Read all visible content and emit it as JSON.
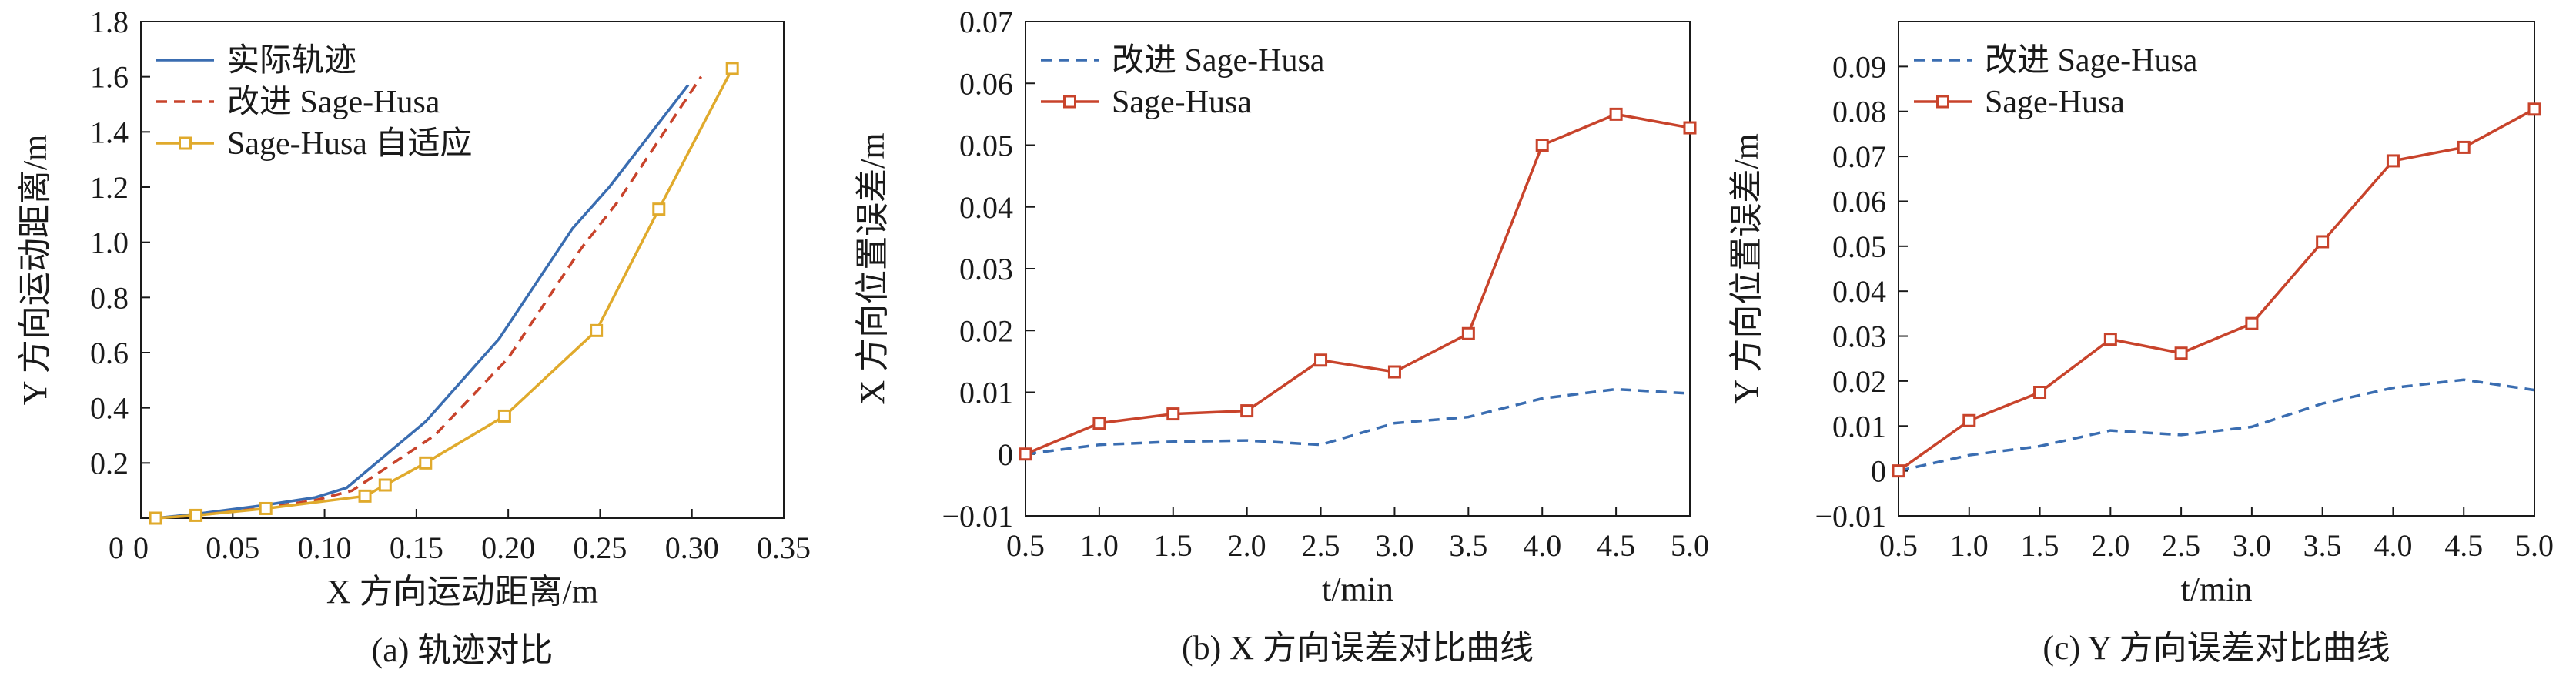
{
  "chart_data": [
    {
      "type": "line",
      "caption": "(a) 轨迹对比",
      "xlabel": "X 方向运动距离/m",
      "ylabel": "Y 方向运动距离/m",
      "xlim": [
        0,
        0.35
      ],
      "ylim": [
        0,
        1.8
      ],
      "xticks": [
        "0",
        "0.05",
        "0.10",
        "0.15",
        "0.20",
        "0.25",
        "0.30",
        "0.35"
      ],
      "yticks": [
        "0.2",
        "0.4",
        "0.6",
        "0.8",
        "1.0",
        "1.2",
        "1.4",
        "1.6",
        "1.8"
      ],
      "legend_position": "top-left",
      "series": [
        {
          "name": "实际轨迹",
          "color": "#3a6db1",
          "style": "solid",
          "marker": "none",
          "x": [
            0.008,
            0.03,
            0.065,
            0.095,
            0.112,
            0.155,
            0.195,
            0.235,
            0.255,
            0.298
          ],
          "y": [
            0.0,
            0.015,
            0.045,
            0.075,
            0.11,
            0.35,
            0.65,
            1.05,
            1.2,
            1.57
          ]
        },
        {
          "name": "改进 Sage-Husa",
          "color": "#c8432b",
          "style": "dashed",
          "marker": "none",
          "x": [
            0.008,
            0.03,
            0.065,
            0.095,
            0.115,
            0.16,
            0.2,
            0.24,
            0.26,
            0.305
          ],
          "y": [
            0.0,
            0.01,
            0.035,
            0.065,
            0.1,
            0.3,
            0.58,
            0.98,
            1.15,
            1.6
          ]
        },
        {
          "name": "Sage-Husa 自适应",
          "color": "#e0aa2c",
          "style": "solid",
          "marker": "square",
          "x": [
            0.008,
            0.03,
            0.068,
            0.122,
            0.133,
            0.155,
            0.198,
            0.248,
            0.282,
            0.322
          ],
          "y": [
            0.0,
            0.01,
            0.035,
            0.08,
            0.12,
            0.2,
            0.37,
            0.68,
            1.12,
            1.63
          ]
        }
      ]
    },
    {
      "type": "line",
      "caption": "(b) X 方向误差对比曲线",
      "xlabel": "t/min",
      "ylabel": "X 方向位置误差/m",
      "xlim": [
        0.5,
        5.0
      ],
      "ylim": [
        -0.01,
        0.07
      ],
      "xticks": [
        "0.5",
        "1.0",
        "1.5",
        "2.0",
        "2.5",
        "3.0",
        "3.5",
        "4.0",
        "4.5",
        "5.0"
      ],
      "yticks": [
        "−0.01",
        "0",
        "0.01",
        "0.02",
        "0.03",
        "0.04",
        "0.05",
        "0.06",
        "0.07"
      ],
      "legend_position": "top-left",
      "series": [
        {
          "name": "改进 Sage-Husa",
          "color": "#3a6db1",
          "style": "dashed",
          "marker": "none",
          "x": [
            0.5,
            1.0,
            1.5,
            2.0,
            2.5,
            3.0,
            3.5,
            4.0,
            4.5,
            5.0
          ],
          "y": [
            0,
            0.0015,
            0.002,
            0.0022,
            0.0015,
            0.005,
            0.006,
            0.009,
            0.0105,
            0.0098
          ]
        },
        {
          "name": "Sage-Husa",
          "color": "#c8432b",
          "style": "solid",
          "marker": "square",
          "x": [
            0.5,
            1.0,
            1.5,
            2.0,
            2.5,
            3.0,
            3.5,
            4.0,
            4.5,
            5.0
          ],
          "y": [
            0,
            0.005,
            0.0065,
            0.007,
            0.0152,
            0.0133,
            0.0195,
            0.05,
            0.055,
            0.0528
          ]
        }
      ]
    },
    {
      "type": "line",
      "caption": "(c) Y 方向误差对比曲线",
      "xlabel": "t/min",
      "ylabel": "Y 方向位置误差/m",
      "xlim": [
        0.5,
        5.0
      ],
      "ylim": [
        -0.01,
        0.1
      ],
      "xticks": [
        "0.5",
        "1.0",
        "1.5",
        "2.0",
        "2.5",
        "3.0",
        "3.5",
        "4.0",
        "4.5",
        "5.0"
      ],
      "yticks": [
        "−0.01",
        "0",
        "0.01",
        "0.02",
        "0.03",
        "0.04",
        "0.05",
        "0.06",
        "0.07",
        "0.08",
        "0.09"
      ],
      "legend_position": "top-left",
      "series": [
        {
          "name": "改进 Sage-Husa",
          "color": "#3a6db1",
          "style": "dashed",
          "marker": "none",
          "x": [
            0.5,
            1.0,
            1.5,
            2.0,
            2.5,
            3.0,
            3.5,
            4.0,
            4.5,
            5.0
          ],
          "y": [
            0,
            0.0035,
            0.0055,
            0.009,
            0.008,
            0.0098,
            0.015,
            0.0185,
            0.0203,
            0.018
          ]
        },
        {
          "name": "Sage-Husa",
          "color": "#c8432b",
          "style": "solid",
          "marker": "square",
          "x": [
            0.5,
            1.0,
            1.5,
            2.0,
            2.5,
            3.0,
            3.5,
            4.0,
            4.5,
            5.0
          ],
          "y": [
            0,
            0.0112,
            0.0175,
            0.0293,
            0.0262,
            0.0328,
            0.051,
            0.069,
            0.072,
            0.0805
          ]
        }
      ]
    }
  ]
}
